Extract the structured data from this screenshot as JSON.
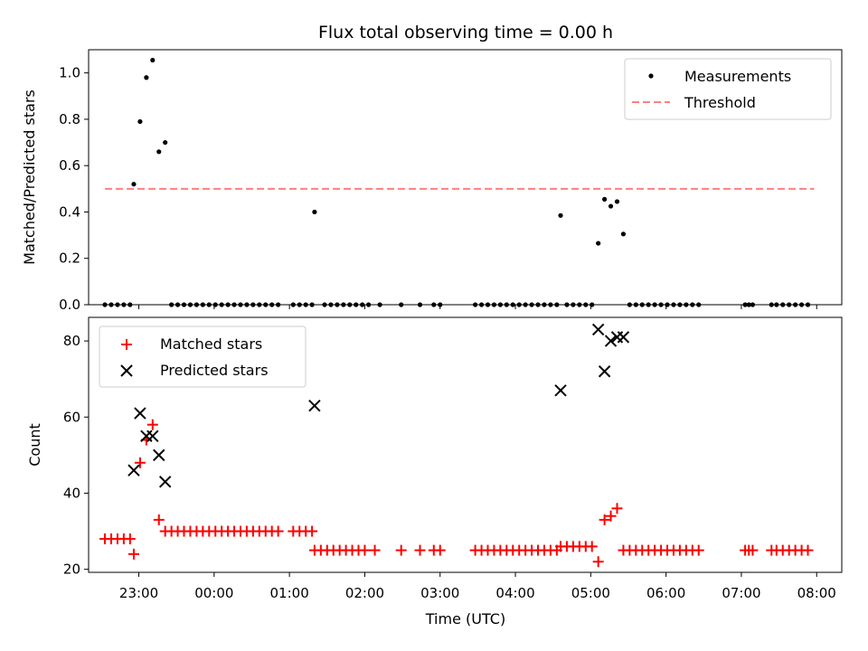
{
  "chart_data": [
    {
      "type": "scatter",
      "title": "Flux total observing time = 0.00 h",
      "ylabel": "Matched/Predicted stars",
      "xlabel": "",
      "xlim": [
        "22:20",
        "08:20"
      ],
      "ylim": [
        0,
        1.1
      ],
      "yticks": [
        "0.0",
        "0.2",
        "0.4",
        "0.6",
        "0.8",
        "1.0"
      ],
      "legend_position": "top-right",
      "series": [
        {
          "name": "Measurements",
          "color": "#000000",
          "marker": "dot",
          "points": [
            {
              "x": "22:33",
              "y": 0
            },
            {
              "x": "22:38",
              "y": 0
            },
            {
              "x": "22:43",
              "y": 0
            },
            {
              "x": "22:48",
              "y": 0
            },
            {
              "x": "22:53",
              "y": 0
            },
            {
              "x": "22:56",
              "y": 0.52
            },
            {
              "x": "23:01",
              "y": 0.79
            },
            {
              "x": "23:06",
              "y": 0.98
            },
            {
              "x": "23:11",
              "y": 1.055
            },
            {
              "x": "23:16",
              "y": 0.66
            },
            {
              "x": "23:21",
              "y": 0.7
            },
            {
              "x": "23:26",
              "y": 0
            },
            {
              "x": "23:31",
              "y": 0
            },
            {
              "x": "23:36",
              "y": 0
            },
            {
              "x": "23:41",
              "y": 0
            },
            {
              "x": "23:46",
              "y": 0
            },
            {
              "x": "23:51",
              "y": 0
            },
            {
              "x": "23:56",
              "y": 0
            },
            {
              "x": "00:01",
              "y": 0
            },
            {
              "x": "00:06",
              "y": 0
            },
            {
              "x": "00:11",
              "y": 0
            },
            {
              "x": "00:16",
              "y": 0
            },
            {
              "x": "00:21",
              "y": 0
            },
            {
              "x": "00:26",
              "y": 0
            },
            {
              "x": "00:31",
              "y": 0
            },
            {
              "x": "00:36",
              "y": 0
            },
            {
              "x": "00:41",
              "y": 0
            },
            {
              "x": "00:46",
              "y": 0
            },
            {
              "x": "00:51",
              "y": 0
            },
            {
              "x": "01:03",
              "y": 0
            },
            {
              "x": "01:08",
              "y": 0
            },
            {
              "x": "01:13",
              "y": 0
            },
            {
              "x": "01:18",
              "y": 0
            },
            {
              "x": "01:20",
              "y": 0.4
            },
            {
              "x": "01:28",
              "y": 0
            },
            {
              "x": "01:33",
              "y": 0
            },
            {
              "x": "01:38",
              "y": 0
            },
            {
              "x": "01:43",
              "y": 0
            },
            {
              "x": "01:48",
              "y": 0
            },
            {
              "x": "01:53",
              "y": 0
            },
            {
              "x": "01:58",
              "y": 0
            },
            {
              "x": "02:03",
              "y": 0
            },
            {
              "x": "02:12",
              "y": 0
            },
            {
              "x": "02:29",
              "y": 0
            },
            {
              "x": "02:44",
              "y": 0
            },
            {
              "x": "02:55",
              "y": 0
            },
            {
              "x": "03:00",
              "y": 0
            },
            {
              "x": "03:28",
              "y": 0
            },
            {
              "x": "03:33",
              "y": 0
            },
            {
              "x": "03:38",
              "y": 0
            },
            {
              "x": "03:43",
              "y": 0
            },
            {
              "x": "03:48",
              "y": 0
            },
            {
              "x": "03:53",
              "y": 0
            },
            {
              "x": "03:58",
              "y": 0
            },
            {
              "x": "04:03",
              "y": 0
            },
            {
              "x": "04:08",
              "y": 0
            },
            {
              "x": "04:13",
              "y": 0
            },
            {
              "x": "04:18",
              "y": 0
            },
            {
              "x": "04:23",
              "y": 0
            },
            {
              "x": "04:28",
              "y": 0
            },
            {
              "x": "04:33",
              "y": 0
            },
            {
              "x": "04:36",
              "y": 0.385
            },
            {
              "x": "04:41",
              "y": 0
            },
            {
              "x": "04:46",
              "y": 0
            },
            {
              "x": "04:51",
              "y": 0
            },
            {
              "x": "04:56",
              "y": 0
            },
            {
              "x": "05:01",
              "y": 0
            },
            {
              "x": "05:06",
              "y": 0.265
            },
            {
              "x": "05:11",
              "y": 0.455
            },
            {
              "x": "05:16",
              "y": 0.425
            },
            {
              "x": "05:21",
              "y": 0.445
            },
            {
              "x": "05:26",
              "y": 0.305
            },
            {
              "x": "05:31",
              "y": 0
            },
            {
              "x": "05:36",
              "y": 0
            },
            {
              "x": "05:41",
              "y": 0
            },
            {
              "x": "05:46",
              "y": 0
            },
            {
              "x": "05:51",
              "y": 0
            },
            {
              "x": "05:56",
              "y": 0
            },
            {
              "x": "06:01",
              "y": 0
            },
            {
              "x": "06:06",
              "y": 0
            },
            {
              "x": "06:11",
              "y": 0
            },
            {
              "x": "06:16",
              "y": 0
            },
            {
              "x": "06:21",
              "y": 0
            },
            {
              "x": "06:26",
              "y": 0
            },
            {
              "x": "07:03",
              "y": 0
            },
            {
              "x": "07:06",
              "y": 0
            },
            {
              "x": "07:09",
              "y": 0
            },
            {
              "x": "07:24",
              "y": 0
            },
            {
              "x": "07:28",
              "y": 0
            },
            {
              "x": "07:33",
              "y": 0
            },
            {
              "x": "07:38",
              "y": 0
            },
            {
              "x": "07:43",
              "y": 0
            },
            {
              "x": "07:48",
              "y": 0
            },
            {
              "x": "07:53",
              "y": 0
            }
          ]
        },
        {
          "name": "Threshold",
          "color": "#ff7f7f",
          "style": "dashed",
          "points": [
            {
              "x": "22:33",
              "y": 0.5
            },
            {
              "x": "07:58",
              "y": 0.5
            }
          ]
        }
      ]
    },
    {
      "type": "scatter",
      "title": "",
      "ylabel": "Count",
      "xlabel": "Time (UTC)",
      "xlim": [
        "22:20",
        "08:20"
      ],
      "ylim": [
        19.2,
        86.2
      ],
      "yticks": [
        "20",
        "40",
        "60",
        "80"
      ],
      "xticks": [
        "23:00",
        "00:00",
        "01:00",
        "02:00",
        "03:00",
        "04:00",
        "05:00",
        "06:00",
        "07:00",
        "08:00"
      ],
      "legend_position": "top-left",
      "series": [
        {
          "name": "Matched stars",
          "color": "#ff0000",
          "marker": "plus",
          "points": [
            {
              "x": "22:33",
              "y": 28
            },
            {
              "x": "22:38",
              "y": 28
            },
            {
              "x": "22:43",
              "y": 28
            },
            {
              "x": "22:48",
              "y": 28
            },
            {
              "x": "22:53",
              "y": 28
            },
            {
              "x": "22:56",
              "y": 24
            },
            {
              "x": "23:01",
              "y": 48
            },
            {
              "x": "23:06",
              "y": 54
            },
            {
              "x": "23:11",
              "y": 58
            },
            {
              "x": "23:16",
              "y": 33
            },
            {
              "x": "23:21",
              "y": 30
            },
            {
              "x": "23:26",
              "y": 30
            },
            {
              "x": "23:31",
              "y": 30
            },
            {
              "x": "23:36",
              "y": 30
            },
            {
              "x": "23:41",
              "y": 30
            },
            {
              "x": "23:46",
              "y": 30
            },
            {
              "x": "23:51",
              "y": 30
            },
            {
              "x": "23:56",
              "y": 30
            },
            {
              "x": "00:01",
              "y": 30
            },
            {
              "x": "00:06",
              "y": 30
            },
            {
              "x": "00:11",
              "y": 30
            },
            {
              "x": "00:16",
              "y": 30
            },
            {
              "x": "00:21",
              "y": 30
            },
            {
              "x": "00:26",
              "y": 30
            },
            {
              "x": "00:31",
              "y": 30
            },
            {
              "x": "00:36",
              "y": 30
            },
            {
              "x": "00:41",
              "y": 30
            },
            {
              "x": "00:46",
              "y": 30
            },
            {
              "x": "00:51",
              "y": 30
            },
            {
              "x": "01:03",
              "y": 30
            },
            {
              "x": "01:08",
              "y": 30
            },
            {
              "x": "01:13",
              "y": 30
            },
            {
              "x": "01:18",
              "y": 30
            },
            {
              "x": "01:20",
              "y": 25
            },
            {
              "x": "01:25",
              "y": 25
            },
            {
              "x": "01:30",
              "y": 25
            },
            {
              "x": "01:35",
              "y": 25
            },
            {
              "x": "01:40",
              "y": 25
            },
            {
              "x": "01:45",
              "y": 25
            },
            {
              "x": "01:50",
              "y": 25
            },
            {
              "x": "01:55",
              "y": 25
            },
            {
              "x": "02:00",
              "y": 25
            },
            {
              "x": "02:08",
              "y": 25
            },
            {
              "x": "02:29",
              "y": 25
            },
            {
              "x": "02:44",
              "y": 25
            },
            {
              "x": "02:55",
              "y": 25
            },
            {
              "x": "03:00",
              "y": 25
            },
            {
              "x": "03:28",
              "y": 25
            },
            {
              "x": "03:33",
              "y": 25
            },
            {
              "x": "03:38",
              "y": 25
            },
            {
              "x": "03:43",
              "y": 25
            },
            {
              "x": "03:48",
              "y": 25
            },
            {
              "x": "03:53",
              "y": 25
            },
            {
              "x": "03:58",
              "y": 25
            },
            {
              "x": "04:03",
              "y": 25
            },
            {
              "x": "04:08",
              "y": 25
            },
            {
              "x": "04:13",
              "y": 25
            },
            {
              "x": "04:18",
              "y": 25
            },
            {
              "x": "04:23",
              "y": 25
            },
            {
              "x": "04:28",
              "y": 25
            },
            {
              "x": "04:33",
              "y": 25
            },
            {
              "x": "04:36",
              "y": 26
            },
            {
              "x": "04:41",
              "y": 26
            },
            {
              "x": "04:46",
              "y": 26
            },
            {
              "x": "04:51",
              "y": 26
            },
            {
              "x": "04:56",
              "y": 26
            },
            {
              "x": "05:01",
              "y": 26
            },
            {
              "x": "05:06",
              "y": 22
            },
            {
              "x": "05:11",
              "y": 33
            },
            {
              "x": "05:16",
              "y": 34
            },
            {
              "x": "05:21",
              "y": 36
            },
            {
              "x": "05:26",
              "y": 25
            },
            {
              "x": "05:31",
              "y": 25
            },
            {
              "x": "05:36",
              "y": 25
            },
            {
              "x": "05:41",
              "y": 25
            },
            {
              "x": "05:46",
              "y": 25
            },
            {
              "x": "05:51",
              "y": 25
            },
            {
              "x": "05:56",
              "y": 25
            },
            {
              "x": "06:01",
              "y": 25
            },
            {
              "x": "06:06",
              "y": 25
            },
            {
              "x": "06:11",
              "y": 25
            },
            {
              "x": "06:16",
              "y": 25
            },
            {
              "x": "06:21",
              "y": 25
            },
            {
              "x": "06:26",
              "y": 25
            },
            {
              "x": "07:03",
              "y": 25
            },
            {
              "x": "07:06",
              "y": 25
            },
            {
              "x": "07:09",
              "y": 25
            },
            {
              "x": "07:24",
              "y": 25
            },
            {
              "x": "07:28",
              "y": 25
            },
            {
              "x": "07:33",
              "y": 25
            },
            {
              "x": "07:38",
              "y": 25
            },
            {
              "x": "07:43",
              "y": 25
            },
            {
              "x": "07:48",
              "y": 25
            },
            {
              "x": "07:53",
              "y": 25
            }
          ]
        },
        {
          "name": "Predicted stars",
          "color": "#000000",
          "marker": "x",
          "points": [
            {
              "x": "22:56",
              "y": 46
            },
            {
              "x": "23:01",
              "y": 61
            },
            {
              "x": "23:06",
              "y": 55
            },
            {
              "x": "23:11",
              "y": 55
            },
            {
              "x": "23:16",
              "y": 50
            },
            {
              "x": "23:21",
              "y": 43
            },
            {
              "x": "01:20",
              "y": 63
            },
            {
              "x": "04:36",
              "y": 67
            },
            {
              "x": "05:06",
              "y": 83
            },
            {
              "x": "05:11",
              "y": 72
            },
            {
              "x": "05:16",
              "y": 80
            },
            {
              "x": "05:21",
              "y": 81
            },
            {
              "x": "05:26",
              "y": 81
            }
          ]
        }
      ]
    }
  ]
}
